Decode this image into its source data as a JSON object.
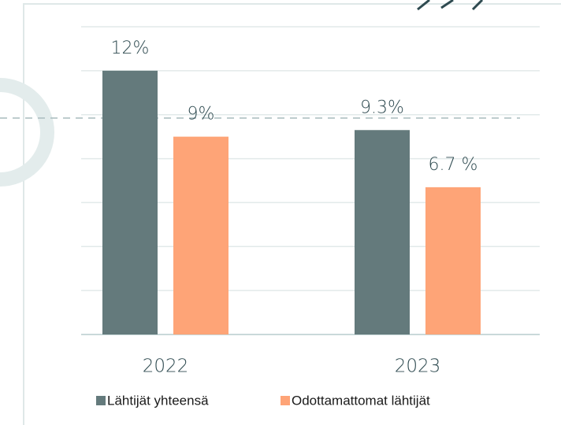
{
  "chart_data": {
    "type": "bar",
    "categories": [
      "2022",
      "2023"
    ],
    "series": [
      {
        "name": "Lähtijät yhteensä",
        "color": "#647a7c",
        "values": [
          12,
          9.3
        ],
        "value_labels": [
          "12%",
          "9.3%"
        ]
      },
      {
        "name": "Odottamattomat lähtijät",
        "color": "#fea477",
        "values": [
          9,
          6.7
        ],
        "value_labels": [
          "9%",
          "6.7 %"
        ]
      }
    ],
    "ylim": [
      0,
      14
    ],
    "yticks": [
      0,
      2,
      4,
      6,
      8,
      10,
      12,
      14
    ],
    "grid": true,
    "legend": "bottom"
  }
}
